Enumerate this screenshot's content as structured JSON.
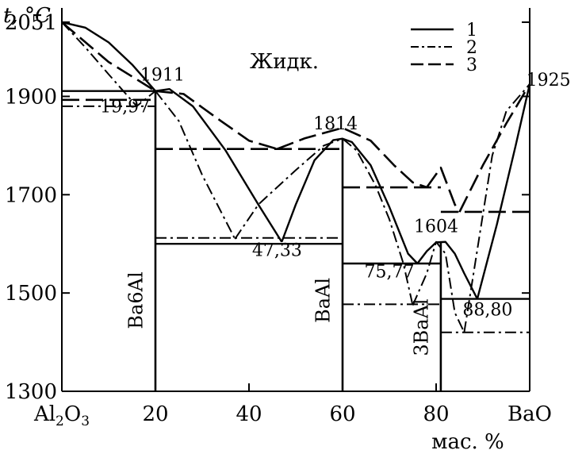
{
  "chart_data": {
    "type": "phase-diagram",
    "title": "",
    "ylabel": "t, °C",
    "xlabel": "мас. %",
    "xlim": [
      0,
      100
    ],
    "ylim": [
      1300,
      2080
    ],
    "x_ticks": [
      {
        "value": 0,
        "label": "Al",
        "sub": "2",
        "label2": "O",
        "sub2": "3"
      },
      {
        "value": 20,
        "label": "20"
      },
      {
        "value": 40,
        "label": "40"
      },
      {
        "value": 60,
        "label": "60"
      },
      {
        "value": 80,
        "label": "80"
      },
      {
        "value": 100,
        "label": "BaO"
      }
    ],
    "y_ticks": [
      {
        "value": 1300,
        "label": "1300"
      },
      {
        "value": 1500,
        "label": "1500"
      },
      {
        "value": 1700,
        "label": "1700"
      },
      {
        "value": 1900,
        "label": "1900"
      },
      {
        "value": 2051,
        "label": "2051"
      }
    ],
    "region_label": "Жидк.",
    "legend": [
      {
        "label": "1",
        "style": "solid"
      },
      {
        "label": "2",
        "style": "dashdot"
      },
      {
        "label": "3",
        "style": "dash"
      }
    ],
    "annotations": [
      {
        "text": "1911",
        "x": 21.5,
        "y": 1932
      },
      {
        "text": "19,97",
        "x": 13.5,
        "y": 1868
      },
      {
        "text": "1814",
        "x": 58.5,
        "y": 1833
      },
      {
        "text": "47,33",
        "x": 46,
        "y": 1575
      },
      {
        "text": "75,77",
        "x": 70,
        "y": 1532
      },
      {
        "text": "1604",
        "x": 80,
        "y": 1624
      },
      {
        "text": "88,80",
        "x": 91,
        "y": 1454
      },
      {
        "text": "1925",
        "x": 104,
        "y": 1922
      }
    ],
    "compounds": [
      {
        "name": "Ba6Al",
        "x": 20,
        "x_label": 17.2,
        "y_label": 1485
      },
      {
        "name": "BaAl",
        "x": 60,
        "x_label": 57.2,
        "y_label": 1485
      },
      {
        "name": "3BaAl",
        "x": 81,
        "x_label": 78.2,
        "y_label": 1430
      }
    ],
    "series": [
      {
        "name": "1",
        "style": "solid",
        "curves": [
          [
            [
              0,
              2051
            ],
            [
              5,
              2040
            ],
            [
              10,
              2010
            ],
            [
              15,
              1965
            ],
            [
              20,
              1911
            ]
          ],
          [
            [
              20,
              1911
            ],
            [
              23,
              1915
            ],
            [
              28,
              1880
            ],
            [
              35,
              1790
            ],
            [
              42,
              1680
            ],
            [
              47,
              1604
            ]
          ],
          [
            [
              47,
              1604
            ],
            [
              50,
              1680
            ],
            [
              54,
              1770
            ],
            [
              58,
              1811
            ],
            [
              60,
              1814
            ],
            [
              62,
              1807
            ],
            [
              66,
              1760
            ],
            [
              70,
              1675
            ],
            [
              74,
              1580
            ],
            [
              76,
              1560
            ]
          ],
          [
            [
              76,
              1560
            ],
            [
              78,
              1585
            ],
            [
              80,
              1603
            ],
            [
              82,
              1604
            ],
            [
              84,
              1580
            ],
            [
              86,
              1540
            ],
            [
              88.8,
              1488
            ]
          ],
          [
            [
              88.8,
              1488
            ],
            [
              93,
              1640
            ],
            [
              97,
              1800
            ],
            [
              100,
              1925
            ]
          ]
        ],
        "isotherms": [
          [
            [
              0,
              1911
            ],
            [
              20,
              1911
            ]
          ],
          [
            [
              20,
              1600
            ],
            [
              60,
              1600
            ]
          ],
          [
            [
              60,
              1560
            ],
            [
              81,
              1560
            ]
          ],
          [
            [
              81,
              1488
            ],
            [
              100,
              1488
            ]
          ]
        ]
      },
      {
        "name": "2",
        "style": "dashdot",
        "curves": [
          [
            [
              0,
              2051
            ],
            [
              5,
              2000
            ],
            [
              10,
              1945
            ],
            [
              16,
              1880
            ],
            [
              20,
              1911
            ]
          ],
          [
            [
              20,
              1911
            ],
            [
              25,
              1850
            ],
            [
              30,
              1740
            ],
            [
              37,
              1610
            ]
          ],
          [
            [
              37,
              1610
            ],
            [
              42,
              1680
            ],
            [
              50,
              1750
            ],
            [
              56,
              1800
            ],
            [
              60,
              1814
            ],
            [
              63,
              1790
            ],
            [
              67,
              1720
            ],
            [
              70,
              1650
            ],
            [
              73,
              1560
            ],
            [
              75,
              1475
            ]
          ],
          [
            [
              75,
              1475
            ],
            [
              78,
              1540
            ],
            [
              80,
              1604
            ],
            [
              82,
              1580
            ],
            [
              84,
              1460
            ],
            [
              86,
              1420
            ]
          ],
          [
            [
              86,
              1420
            ],
            [
              89,
              1600
            ],
            [
              92,
              1780
            ],
            [
              95,
              1870
            ],
            [
              100,
              1925
            ]
          ]
        ],
        "isotherms": [
          [
            [
              0,
              1880
            ],
            [
              20,
              1880
            ]
          ],
          [
            [
              20,
              1612
            ],
            [
              60,
              1612
            ]
          ],
          [
            [
              60,
              1477
            ],
            [
              81,
              1477
            ]
          ],
          [
            [
              81,
              1420
            ],
            [
              100,
              1420
            ]
          ]
        ]
      },
      {
        "name": "3",
        "style": "dash",
        "curves": [
          [
            [
              0,
              2051
            ],
            [
              10,
              1970
            ],
            [
              20,
              1911
            ]
          ],
          [
            [
              20,
              1911
            ],
            [
              26,
              1905
            ],
            [
              34,
              1850
            ],
            [
              40,
              1810
            ],
            [
              46,
              1793
            ]
          ],
          [
            [
              46,
              1793
            ],
            [
              52,
              1815
            ],
            [
              60,
              1836
            ],
            [
              66,
              1810
            ],
            [
              71,
              1760
            ],
            [
              75,
              1725
            ],
            [
              78,
              1715
            ]
          ],
          [
            [
              78,
              1715
            ],
            [
              81,
              1755
            ],
            [
              84,
              1680
            ],
            [
              85,
              1665
            ]
          ],
          [
            [
              85,
              1665
            ],
            [
              90,
              1760
            ],
            [
              95,
              1845
            ],
            [
              100,
              1925
            ]
          ]
        ],
        "isotherms": [
          [
            [
              0,
              1893
            ],
            [
              20,
              1893
            ]
          ],
          [
            [
              20,
              1793
            ],
            [
              60,
              1793
            ]
          ],
          [
            [
              60,
              1715
            ],
            [
              81,
              1715
            ]
          ],
          [
            [
              81,
              1665
            ],
            [
              100,
              1665
            ]
          ]
        ]
      }
    ]
  }
}
